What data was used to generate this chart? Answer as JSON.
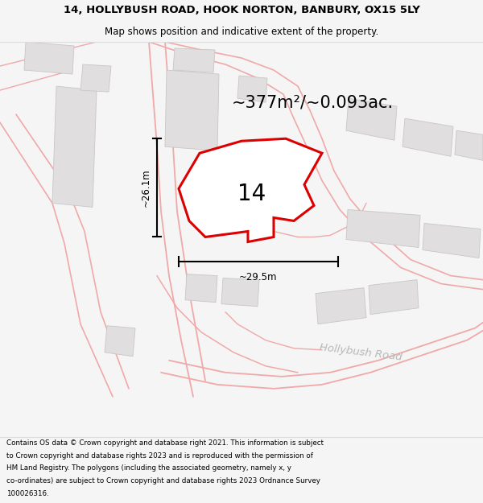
{
  "title_line1": "14, HOLLYBUSH ROAD, HOOK NORTON, BANBURY, OX15 5LY",
  "title_line2": "Map shows position and indicative extent of the property.",
  "area_text": "~377m²/~0.093ac.",
  "width_label": "~29.5m",
  "height_label": "~26.1m",
  "number_label": "14",
  "road_label": "Hollybush Road",
  "footer_text": "Contains OS data © Crown copyright and database right 2021. This information is subject to Crown copyright and database rights 2023 and is reproduced with the permission of HM Land Registry. The polygons (including the associated geometry, namely x, y co-ordinates) are subject to Crown copyright and database rights 2023 Ordnance Survey 100026316.",
  "bg_color": "#f5f5f5",
  "map_bg": "#f5f2f2",
  "building_color": "#e0dede",
  "road_line_color": "#f0a8a8",
  "plot_fill": "#ffffff",
  "plot_edge": "#dd0000",
  "title_bg": "#ffffff",
  "footer_bg": "#ffffff"
}
